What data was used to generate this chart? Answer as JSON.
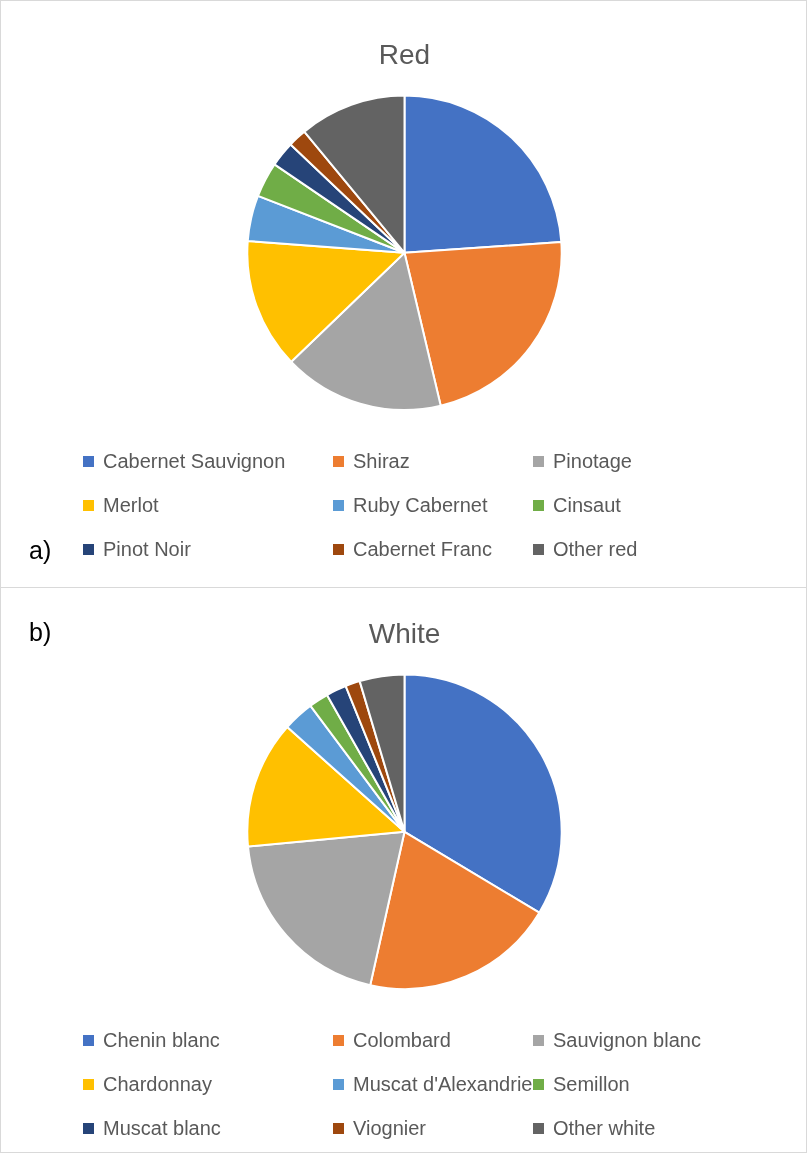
{
  "chart_data": [
    {
      "type": "pie",
      "title": "Red",
      "categories": [
        "Cabernet Sauvignon",
        "Shiraz",
        "Pinotage",
        "Merlot",
        "Ruby Cabernet",
        "Cinsaut",
        "Pinot Noir",
        "Cabernet Franc",
        "Other red"
      ],
      "values": [
        23.9,
        22.4,
        16.5,
        13.4,
        4.7,
        3.6,
        2.6,
        1.9,
        11.0
      ],
      "colors": [
        "#4472c4",
        "#ed7d31",
        "#a5a5a5",
        "#ffc000",
        "#5b9bd5",
        "#70ad47",
        "#264478",
        "#9e480e",
        "#636363"
      ],
      "legend": "bottom",
      "annotations": [
        "a)"
      ]
    },
    {
      "type": "pie",
      "title": "White",
      "categories": [
        "Chenin blanc",
        "Colombard",
        "Sauvignon blanc",
        "Chardonnay",
        "Muscat d'Alexandrie",
        "Semillon",
        "Muscat blanc",
        "Viognier",
        "Other white"
      ],
      "values": [
        33.6,
        19.9,
        20.0,
        13.1,
        3.2,
        2.0,
        2.1,
        1.5,
        4.6
      ],
      "colors": [
        "#4472c4",
        "#ed7d31",
        "#a5a5a5",
        "#ffc000",
        "#5b9bd5",
        "#70ad47",
        "#264478",
        "#9e480e",
        "#636363"
      ],
      "legend": "bottom",
      "annotations": [
        "b)"
      ]
    }
  ]
}
